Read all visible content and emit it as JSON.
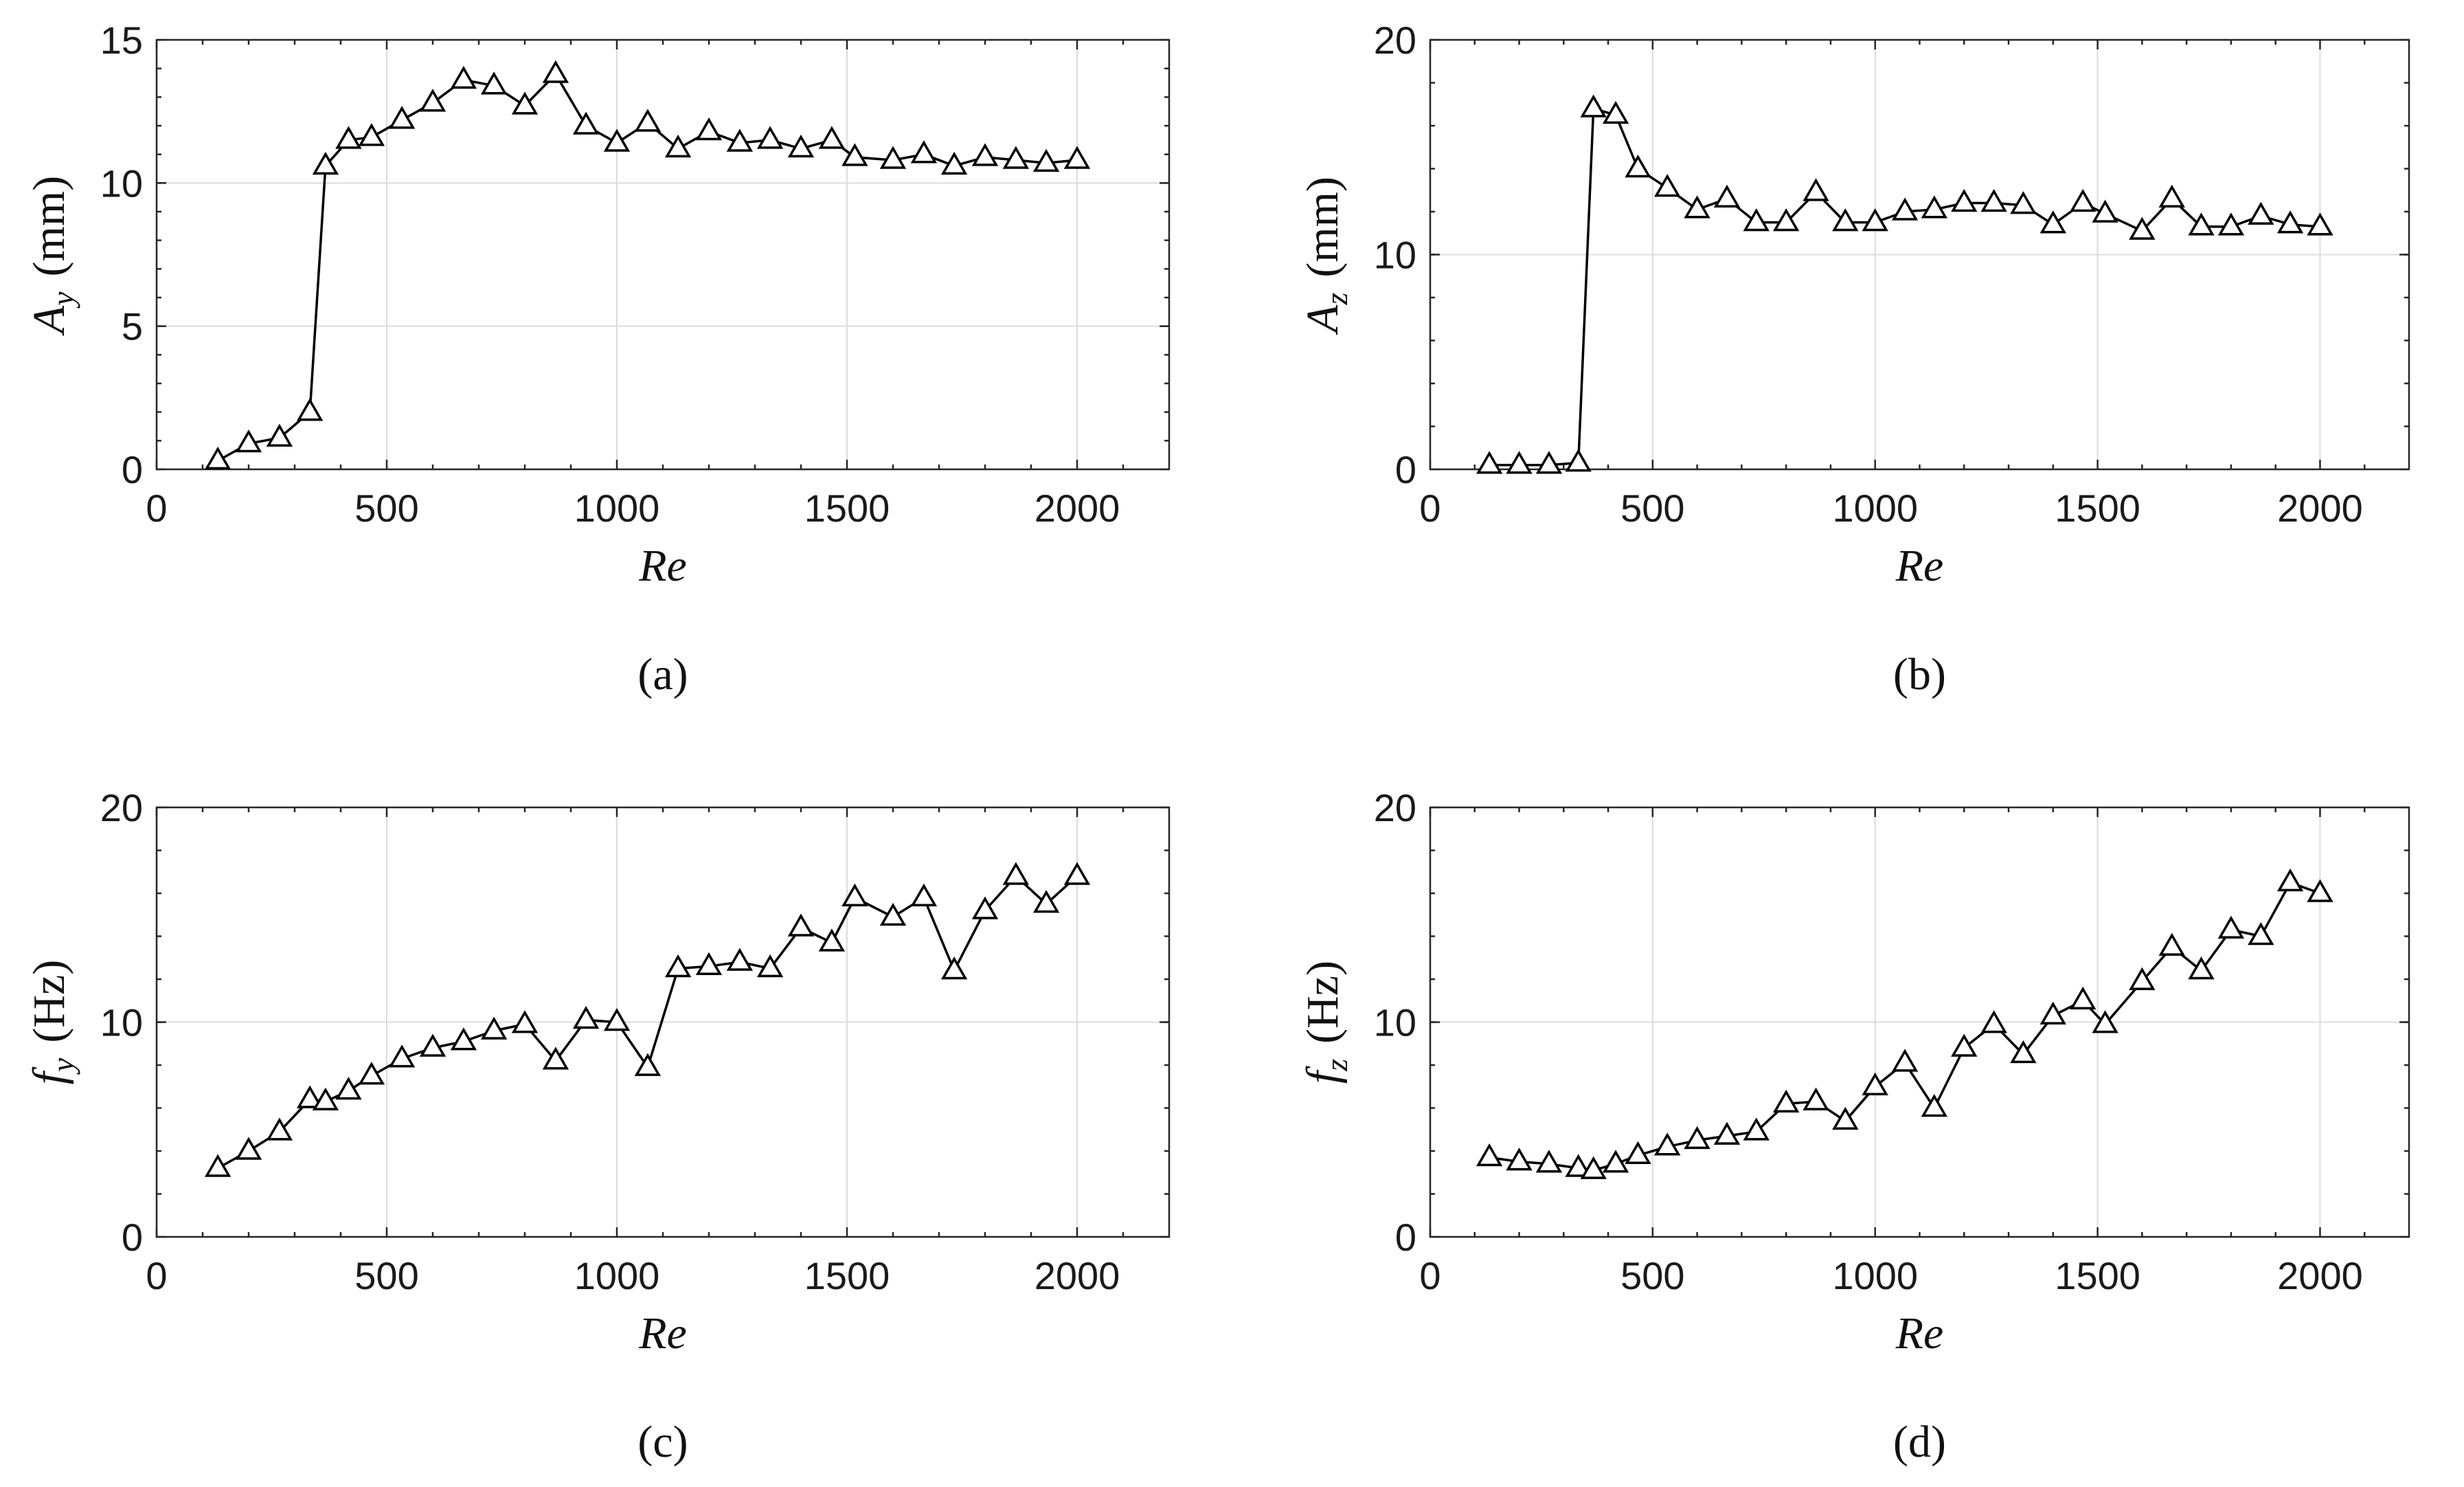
{
  "chart_data": [
    {
      "type": "line",
      "panel_label": "(a)",
      "xlabel": "Re",
      "ylabel": {
        "symbol": "A",
        "subscript": "y",
        "unit": "(mm)"
      },
      "xlim": [
        0,
        2200
      ],
      "ylim": [
        0,
        15
      ],
      "xticks": [
        0,
        500,
        1000,
        1500,
        2000
      ],
      "yticks": [
        0,
        5,
        10,
        15
      ],
      "grid": true,
      "marker": "triangle",
      "x": [
        133,
        200,
        267,
        333,
        367,
        417,
        467,
        533,
        600,
        667,
        733,
        800,
        867,
        933,
        1000,
        1067,
        1133,
        1200,
        1267,
        1333,
        1400,
        1467,
        1517,
        1600,
        1667,
        1733,
        1800,
        1867,
        1933,
        2000
      ],
      "y": [
        0.3,
        0.9,
        1.1,
        2.0,
        10.6,
        11.5,
        11.6,
        12.2,
        12.8,
        13.6,
        13.4,
        12.7,
        13.8,
        12.0,
        11.4,
        12.1,
        11.2,
        11.8,
        11.4,
        11.5,
        11.2,
        11.5,
        10.9,
        10.8,
        11.0,
        10.6,
        10.9,
        10.8,
        10.7,
        10.8
      ]
    },
    {
      "type": "line",
      "panel_label": "(b)",
      "xlabel": "Re",
      "ylabel": {
        "symbol": "A",
        "subscript": "z",
        "unit": "(mm)"
      },
      "xlim": [
        0,
        2200
      ],
      "ylim": [
        0,
        20
      ],
      "xticks": [
        0,
        500,
        1000,
        1500,
        2000
      ],
      "yticks": [
        0,
        10,
        20
      ],
      "grid": true,
      "marker": "triangle",
      "x": [
        133,
        200,
        267,
        333,
        367,
        417,
        467,
        533,
        600,
        667,
        733,
        800,
        867,
        933,
        1000,
        1067,
        1133,
        1200,
        1267,
        1333,
        1400,
        1467,
        1517,
        1600,
        1667,
        1733,
        1800,
        1867,
        1933,
        2000
      ],
      "y": [
        0.2,
        0.2,
        0.2,
        0.3,
        16.8,
        16.5,
        14.0,
        13.1,
        12.1,
        12.6,
        11.5,
        11.5,
        12.9,
        11.5,
        11.5,
        12.0,
        12.1,
        12.4,
        12.4,
        12.3,
        11.4,
        12.4,
        11.9,
        11.1,
        12.6,
        11.3,
        11.3,
        11.8,
        11.4,
        11.3
      ]
    },
    {
      "type": "line",
      "panel_label": "(c)",
      "xlabel": "Re",
      "ylabel": {
        "symbol": "f",
        "subscript": "y",
        "unit": "(Hz)"
      },
      "xlim": [
        0,
        2200
      ],
      "ylim": [
        0,
        20
      ],
      "xticks": [
        0,
        500,
        1000,
        1500,
        2000
      ],
      "yticks": [
        0,
        10,
        20
      ],
      "grid": true,
      "marker": "triangle",
      "x": [
        133,
        200,
        267,
        333,
        367,
        417,
        467,
        533,
        600,
        667,
        733,
        800,
        867,
        933,
        1000,
        1067,
        1133,
        1200,
        1267,
        1333,
        1400,
        1467,
        1517,
        1600,
        1667,
        1733,
        1800,
        1867,
        1933,
        2000
      ],
      "y": [
        3.2,
        4.0,
        4.9,
        6.4,
        6.3,
        6.8,
        7.5,
        8.3,
        8.8,
        9.1,
        9.6,
        9.9,
        8.2,
        10.1,
        10.0,
        7.9,
        12.5,
        12.6,
        12.8,
        12.5,
        14.4,
        13.7,
        15.8,
        14.9,
        15.8,
        12.4,
        15.2,
        16.8,
        15.5,
        16.8
      ]
    },
    {
      "type": "line",
      "panel_label": "(d)",
      "xlabel": "Re",
      "ylabel": {
        "symbol": "f",
        "subscript": "z",
        "unit": "(Hz)"
      },
      "xlim": [
        0,
        2200
      ],
      "ylim": [
        0,
        20
      ],
      "xticks": [
        0,
        500,
        1000,
        1500,
        2000
      ],
      "yticks": [
        0,
        10,
        20
      ],
      "grid": true,
      "marker": "triangle",
      "x": [
        133,
        200,
        267,
        333,
        367,
        417,
        467,
        533,
        600,
        667,
        733,
        800,
        867,
        933,
        1000,
        1067,
        1133,
        1200,
        1267,
        1333,
        1400,
        1467,
        1517,
        1600,
        1667,
        1733,
        1800,
        1867,
        1933,
        2000
      ],
      "y": [
        3.7,
        3.5,
        3.4,
        3.2,
        3.1,
        3.4,
        3.8,
        4.2,
        4.5,
        4.7,
        4.9,
        6.2,
        6.3,
        5.4,
        7.0,
        8.1,
        6.0,
        8.8,
        9.9,
        8.5,
        10.3,
        11.0,
        9.9,
        11.9,
        13.5,
        12.4,
        14.3,
        14.0,
        16.5,
        16.0
      ]
    }
  ]
}
